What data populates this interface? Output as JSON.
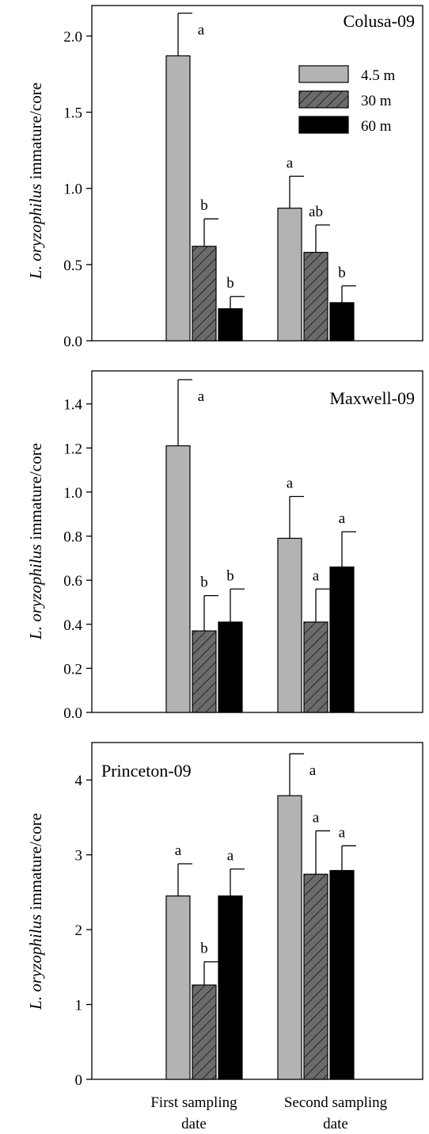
{
  "chart_data": [
    {
      "type": "bar",
      "title": "Colusa-09",
      "ylabel_italic": "L. oryzophilus",
      "ylabel_rest": " immature/core",
      "ylim": [
        0,
        2.2
      ],
      "yticks": [
        "0.0",
        "0.5",
        "1.0",
        "1.5",
        "2.0"
      ],
      "ytick_values": [
        0,
        0.5,
        1.0,
        1.5,
        2.0
      ],
      "legend": [
        {
          "name": "4.5 m",
          "color": "#b3b3b3",
          "hatch": false
        },
        {
          "name": "30 m",
          "color": "#666666",
          "hatch": true
        },
        {
          "name": "60 m",
          "color": "#000000",
          "hatch": false
        }
      ],
      "legend_position": "top-right",
      "series": [
        {
          "name": "4.5 m",
          "values": [
            1.87,
            0.87
          ],
          "errors": [
            0.28,
            0.21
          ],
          "letters": [
            "a",
            "a"
          ]
        },
        {
          "name": "30 m",
          "values": [
            0.62,
            0.58
          ],
          "errors": [
            0.18,
            0.18
          ],
          "letters": [
            "b",
            "ab"
          ]
        },
        {
          "name": "60 m",
          "values": [
            0.21,
            0.25
          ],
          "errors": [
            0.08,
            0.11
          ],
          "letters": [
            "b",
            "b"
          ]
        }
      ]
    },
    {
      "type": "bar",
      "title": "Maxwell-09",
      "ylabel_italic": "L. oryzophilus",
      "ylabel_rest": " immature/core",
      "ylim": [
        0,
        1.55
      ],
      "yticks": [
        "0.0",
        "0.2",
        "0.4",
        "0.6",
        "0.8",
        "1.0",
        "1.2",
        "1.4"
      ],
      "ytick_values": [
        0,
        0.2,
        0.4,
        0.6,
        0.8,
        1.0,
        1.2,
        1.4
      ],
      "series": [
        {
          "name": "4.5 m",
          "values": [
            1.21,
            0.79
          ],
          "errors": [
            0.3,
            0.19
          ],
          "letters": [
            "a",
            "a"
          ]
        },
        {
          "name": "30 m",
          "values": [
            0.37,
            0.41
          ],
          "errors": [
            0.16,
            0.15
          ],
          "letters": [
            "b",
            "a"
          ]
        },
        {
          "name": "60 m",
          "values": [
            0.41,
            0.66
          ],
          "errors": [
            0.15,
            0.16
          ],
          "letters": [
            "b",
            "a"
          ]
        }
      ]
    },
    {
      "type": "bar",
      "title": "Princeton-09",
      "ylabel_italic": "L. oryzophilus",
      "ylabel_rest": " immature/core",
      "ylim": [
        0,
        4.5
      ],
      "yticks": [
        "0",
        "1",
        "2",
        "3",
        "4"
      ],
      "ytick_values": [
        0,
        1,
        2,
        3,
        4
      ],
      "series": [
        {
          "name": "4.5 m",
          "values": [
            2.45,
            3.79
          ],
          "errors": [
            0.43,
            0.56
          ],
          "letters": [
            "a",
            "a"
          ]
        },
        {
          "name": "30 m",
          "values": [
            1.26,
            2.74
          ],
          "errors": [
            0.31,
            0.58
          ],
          "letters": [
            "b",
            "a"
          ]
        },
        {
          "name": "60 m",
          "values": [
            2.45,
            2.79
          ],
          "errors": [
            0.36,
            0.33
          ],
          "letters": [
            "a",
            "a"
          ]
        }
      ]
    }
  ],
  "categories": [
    {
      "line1": "First sampling",
      "line2": "date"
    },
    {
      "line1": "Second sampling",
      "line2": "date"
    }
  ]
}
